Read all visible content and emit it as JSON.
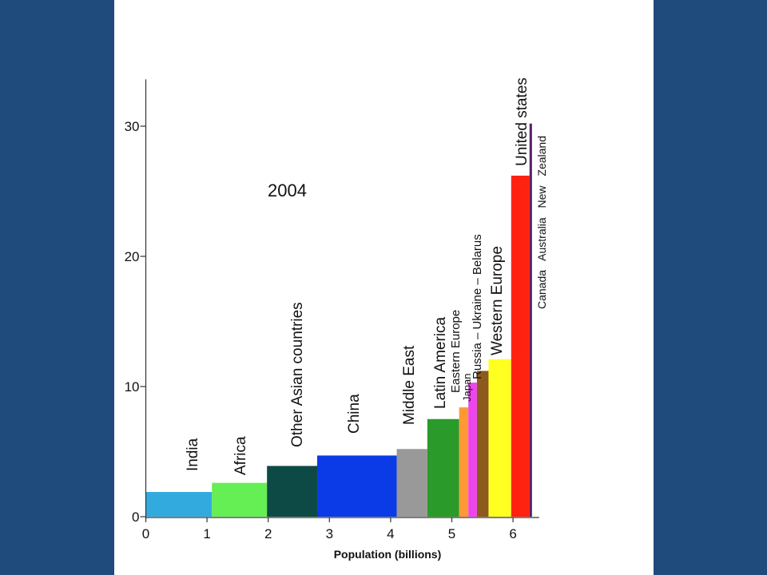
{
  "slide": {
    "background": "#1f4a7c"
  },
  "chart_data": {
    "type": "bar",
    "title": "2004",
    "xlabel": "Population (billions)",
    "ylabel": "",
    "xlim": [
      0,
      6.4
    ],
    "ylim": [
      0,
      34
    ],
    "x_ticks": [
      "0",
      "1",
      "2",
      "3",
      "4",
      "5",
      "6"
    ],
    "y_ticks": [
      "0",
      "10",
      "20",
      "30"
    ],
    "grid": false,
    "bars": [
      {
        "label": "India",
        "x0": 0.0,
        "x1": 1.08,
        "value": 1.9,
        "color": "#33aadd"
      },
      {
        "label": "Africa",
        "x0": 1.08,
        "x1": 1.98,
        "value": 2.6,
        "color": "#66ee55"
      },
      {
        "label": "Other Asian countries",
        "x0": 1.98,
        "x1": 2.8,
        "value": 3.9,
        "color": "#0d4a45"
      },
      {
        "label": "China",
        "x0": 2.8,
        "x1": 4.1,
        "value": 4.7,
        "color": "#0a3be6"
      },
      {
        "label": "Middle East",
        "x0": 4.1,
        "x1": 4.6,
        "value": 5.2,
        "color": "#999999"
      },
      {
        "label": "Latin America",
        "x0": 4.6,
        "x1": 5.12,
        "value": 7.5,
        "color": "#2a9a2a"
      },
      {
        "label": "Eastern Europe",
        "x0": 5.12,
        "x1": 5.27,
        "value": 8.4,
        "color": "#ff9933"
      },
      {
        "label": "Japan",
        "x0": 5.27,
        "x1": 5.41,
        "value": 10.3,
        "color": "#ee44ee"
      },
      {
        "label": "Russia – Ukraine – Belarus",
        "x0": 5.41,
        "x1": 5.6,
        "value": 11.2,
        "color": "#8b5a1c"
      },
      {
        "label": "Western Europe",
        "x0": 5.6,
        "x1": 5.97,
        "value": 12.1,
        "color": "#ffff22"
      },
      {
        "label": "United states",
        "x0": 5.97,
        "x1": 6.27,
        "value": 26.2,
        "color": "#ff2211"
      },
      {
        "label": "Canada Australia New Zealand",
        "x0": 6.27,
        "x1": 6.31,
        "value": 30.2,
        "color": "#552266"
      }
    ]
  }
}
